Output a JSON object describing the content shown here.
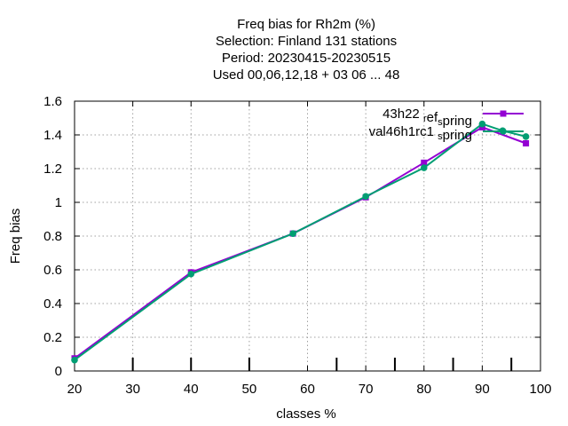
{
  "chart_data": {
    "type": "line",
    "title_lines": [
      "Freq bias  for Rh2m (%)",
      "Selection: Finland    131 stations",
      "Period: 20230415-20230515",
      "Used  00,06,12,18  + 03 06 ... 48"
    ],
    "xlabel": "classes %",
    "ylabel": "Freq bias",
    "xlim": [
      20,
      100
    ],
    "ylim": [
      0,
      1.6
    ],
    "x_ticks": [
      20,
      30,
      40,
      50,
      60,
      70,
      80,
      90,
      100
    ],
    "y_ticks": [
      0,
      0.2,
      0.4,
      0.6,
      0.8,
      1,
      1.2,
      1.4,
      1.6
    ],
    "x_tick_labels": [
      "20",
      "30",
      "40",
      "50",
      "60",
      "70",
      "80",
      "90",
      "100"
    ],
    "y_tick_labels": [
      "0",
      "0.2",
      "0.4",
      "0.6",
      "0.8",
      "1",
      "1.2",
      "1.4",
      "1.6"
    ],
    "bottom_marker_ticks": [
      30,
      40,
      50,
      65,
      75,
      85,
      95
    ],
    "grid": true,
    "legend_position": "top-right",
    "series": [
      {
        "name": "43h22",
        "name_sub1": "r",
        "name_mid": "ef",
        "name_sub2": "s",
        "name_end": "pring",
        "color": "#9400d3",
        "marker": "square",
        "x": [
          20,
          40,
          57.5,
          70,
          80,
          90,
          97.5
        ],
        "y": [
          0.075,
          0.585,
          0.815,
          1.03,
          1.235,
          1.445,
          1.35
        ]
      },
      {
        "name": "val46h1rc1",
        "name_sub1": "",
        "name_mid": "",
        "name_sub2": "s",
        "name_end": "pring",
        "color": "#009e73",
        "marker": "circle",
        "x": [
          20,
          40,
          57.5,
          70,
          80,
          90,
          93.5,
          97.5
        ],
        "y": [
          0.065,
          0.575,
          0.815,
          1.035,
          1.205,
          1.465,
          1.425,
          1.39
        ]
      }
    ]
  }
}
